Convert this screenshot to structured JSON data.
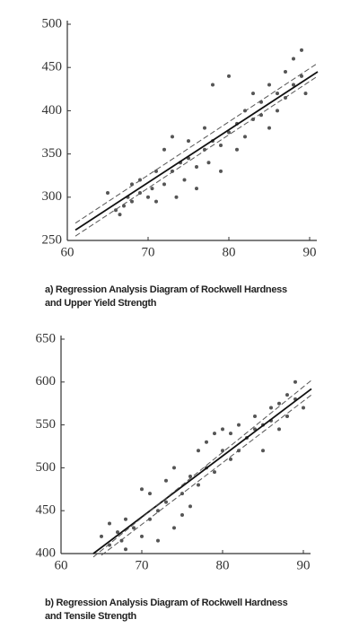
{
  "chart_data": [
    {
      "type": "scatter",
      "caption": [
        "a) Regression Analysis Diagram of Rockwell Hardness",
        "and Upper Yield Strength"
      ],
      "xlim": [
        60,
        90
      ],
      "xticks": [
        60,
        70,
        80,
        90
      ],
      "ylim": [
        250,
        500
      ],
      "yticks": [
        250,
        300,
        350,
        400,
        450,
        500
      ],
      "series": [
        {
          "type": "scatter",
          "color": "#555555",
          "x": [
            65,
            66,
            66.5,
            67,
            67.5,
            68,
            68,
            69,
            69,
            70,
            70.5,
            71,
            71,
            72,
            72,
            73,
            73,
            73.5,
            74,
            74.5,
            75,
            75,
            76,
            76,
            77,
            77,
            77.5,
            78,
            78,
            79,
            79,
            80,
            80,
            81,
            81,
            82,
            82,
            83,
            83,
            84,
            84,
            85,
            85,
            86,
            86,
            87,
            87,
            88,
            88,
            89,
            89,
            89.5
          ],
          "values": [
            305,
            285,
            280,
            290,
            300,
            295,
            315,
            305,
            320,
            300,
            310,
            330,
            295,
            355,
            315,
            330,
            370,
            300,
            340,
            320,
            345,
            365,
            335,
            310,
            355,
            380,
            340,
            430,
            365,
            360,
            330,
            375,
            440,
            385,
            355,
            400,
            370,
            390,
            420,
            395,
            410,
            380,
            430,
            420,
            400,
            445,
            415,
            460,
            430,
            470,
            440,
            420
          ]
        },
        {
          "type": "line",
          "color": "#111111",
          "dash": false,
          "x": [
            61,
            91
          ],
          "values": [
            262,
            445
          ]
        },
        {
          "type": "line",
          "color": "#555555",
          "dash": true,
          "x": [
            61,
            91
          ],
          "values": [
            270,
            455
          ]
        },
        {
          "type": "line",
          "color": "#555555",
          "dash": true,
          "x": [
            61,
            91
          ],
          "values": [
            255,
            440
          ]
        }
      ]
    },
    {
      "type": "scatter",
      "caption": [
        "b) Regression Analysis Diagram of Rockwell Hardness",
        "and Tensile Strength"
      ],
      "xlim": [
        60,
        90
      ],
      "xticks": [
        60,
        70,
        80,
        90
      ],
      "ylim": [
        400,
        650
      ],
      "yticks": [
        400,
        450,
        500,
        550,
        600,
        650
      ],
      "series": [
        {
          "type": "scatter",
          "color": "#555555",
          "x": [
            65,
            66,
            66,
            67,
            67.5,
            68,
            68,
            69,
            70,
            70,
            71,
            71,
            72,
            72,
            73,
            73,
            74,
            74,
            75,
            75,
            76,
            76,
            77,
            77,
            78,
            78,
            79,
            79,
            80,
            80,
            81,
            81,
            82,
            82,
            83,
            84,
            84,
            85,
            85,
            86,
            86,
            87,
            87,
            88,
            88,
            89,
            89,
            90
          ],
          "values": [
            420,
            435,
            410,
            425,
            415,
            440,
            405,
            430,
            475,
            420,
            470,
            440,
            450,
            415,
            460,
            485,
            430,
            500,
            470,
            445,
            490,
            455,
            520,
            480,
            530,
            500,
            540,
            495,
            520,
            545,
            540,
            510,
            550,
            520,
            535,
            545,
            560,
            550,
            520,
            570,
            555,
            575,
            545,
            585,
            560,
            600,
            580,
            570
          ]
        },
        {
          "type": "line",
          "color": "#111111",
          "dash": false,
          "x": [
            64,
            91
          ],
          "values": [
            400,
            592
          ]
        },
        {
          "type": "line",
          "color": "#555555",
          "dash": true,
          "x": [
            64,
            91
          ],
          "values": [
            396,
            602
          ]
        },
        {
          "type": "line",
          "color": "#555555",
          "dash": true,
          "x": [
            65,
            91
          ],
          "values": [
            398,
            585
          ]
        }
      ]
    }
  ]
}
